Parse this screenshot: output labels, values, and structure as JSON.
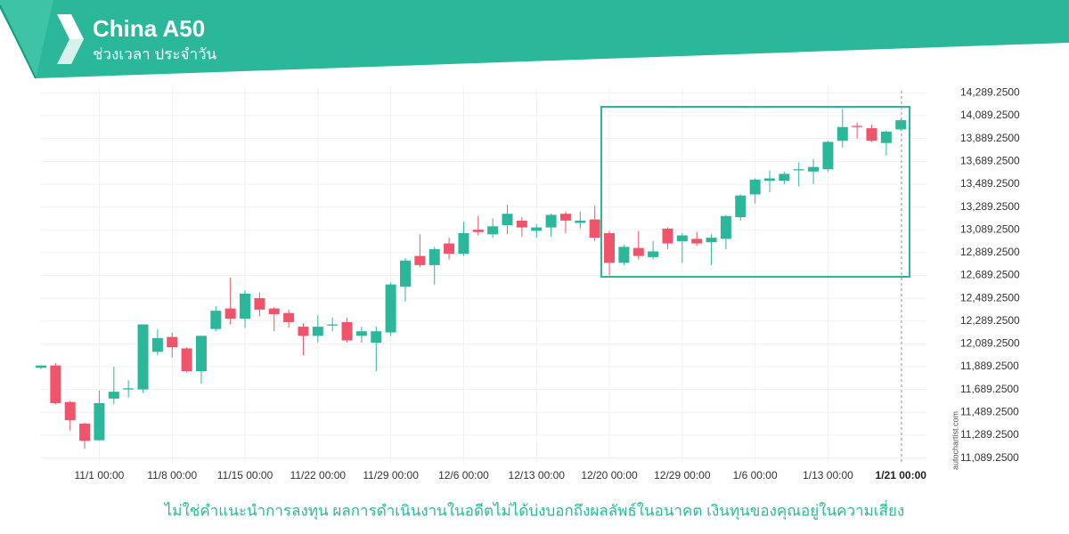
{
  "chart_data": {
    "type": "candlestick",
    "title": "China A50",
    "subtitle": "ช่วงเวลา ประจำวัน",
    "source": "autochartist.com",
    "note": "ไม่ใช่คำแนะนำการลงทุน ผลการดำเนินงานในอดีตไม่ได้บ่งบอกถึงผลลัพธ์ในอนาคต เงินทุนของคุณอยู่ในความเสี่ยง",
    "categories": [
      null,
      null,
      null,
      null,
      "11/1 00:00",
      null,
      null,
      null,
      null,
      "11/8 00:00",
      null,
      null,
      null,
      null,
      "11/15 00:00",
      null,
      null,
      null,
      null,
      "11/22 00:00",
      null,
      null,
      null,
      null,
      "11/29 00:00",
      null,
      null,
      null,
      null,
      "12/6 00:00",
      null,
      null,
      null,
      null,
      "12/13 00:00",
      null,
      null,
      null,
      null,
      "12/20 00:00",
      null,
      null,
      null,
      null,
      "12/29 00:00",
      null,
      null,
      null,
      null,
      "1/6 00:00",
      null,
      null,
      null,
      null,
      "1/13 00:00",
      null,
      null,
      null,
      null,
      "1/21 00:00"
    ],
    "open": [
      11880,
      11900,
      11580,
      11390,
      11245,
      11610,
      11690,
      11690,
      12020,
      12150,
      12050,
      11850,
      12220,
      12400,
      12310,
      12490,
      12400,
      12360,
      12240,
      12160,
      12250,
      12280,
      12160,
      12100,
      12190,
      12590,
      12860,
      12780,
      12970,
      12880,
      13090,
      13050,
      13130,
      13170,
      13080,
      13110,
      13230,
      13150,
      13180,
      13060,
      12800,
      12930,
      12850,
      13100,
      12990,
      13010,
      12980,
      13010,
      13200,
      13400,
      13520,
      13520,
      13610,
      13600,
      13620,
      13870,
      14000,
      13980,
      13850,
      13970
    ],
    "high": [
      11900,
      11920,
      11590,
      11400,
      11680,
      11890,
      11770,
      12260,
      12220,
      12190,
      12060,
      12160,
      12420,
      12670,
      12560,
      12540,
      12410,
      12390,
      12270,
      12340,
      12320,
      12320,
      12240,
      12240,
      12630,
      12840,
      13050,
      12940,
      13020,
      13160,
      13210,
      13190,
      13310,
      13200,
      13140,
      13230,
      13250,
      13250,
      13300,
      13080,
      12960,
      13080,
      12990,
      13110,
      13060,
      13070,
      13050,
      13220,
      13400,
      13540,
      13610,
      13600,
      13680,
      13710,
      13870,
      14150,
      14030,
      14010,
      13960,
      14060
    ],
    "low": [
      11870,
      11560,
      11330,
      11170,
      11240,
      11560,
      11620,
      11660,
      11990,
      11970,
      11840,
      11740,
      12200,
      12260,
      12230,
      12330,
      12200,
      12230,
      11990,
      12100,
      12200,
      12100,
      12100,
      11850,
      12160,
      12460,
      12760,
      12610,
      12830,
      12860,
      13040,
      13020,
      13050,
      13030,
      13020,
      13030,
      13060,
      13100,
      12990,
      12690,
      12780,
      12830,
      12830,
      12920,
      12800,
      12950,
      12780,
      12920,
      13170,
      13320,
      13420,
      13490,
      13470,
      13490,
      13600,
      13810,
      13890,
      13860,
      13740,
      13960
    ],
    "close": [
      11900,
      11570,
      11420,
      11240,
      11570,
      11670,
      11700,
      12260,
      12140,
      12060,
      11850,
      12160,
      12380,
      12310,
      12530,
      12390,
      12350,
      12280,
      12160,
      12240,
      12260,
      12120,
      12200,
      12200,
      12610,
      12820,
      12780,
      12920,
      12880,
      13060,
      13070,
      13120,
      13230,
      13110,
      13110,
      13220,
      13170,
      13170,
      13020,
      12800,
      12940,
      12860,
      12900,
      12970,
      13040,
      12970,
      13020,
      13210,
      13390,
      13530,
      13540,
      13580,
      13620,
      13640,
      13860,
      13990,
      13990,
      13870,
      13950,
      14050
    ],
    "up_color": "#2bb89a",
    "down_color": "#f0546a",
    "ylim": [
      11039.25,
      14339.25
    ],
    "yticks": [
      {
        "value": 11089.25,
        "label": "11,089.2500"
      },
      {
        "value": 11289.25,
        "label": "11,289.2500"
      },
      {
        "value": 11489.25,
        "label": "11,489.2500"
      },
      {
        "value": 11689.25,
        "label": "11,689.2500"
      },
      {
        "value": 11889.25,
        "label": "11,889.2500"
      },
      {
        "value": 12089.25,
        "label": "12,089.2500"
      },
      {
        "value": 12289.25,
        "label": "12,289.2500"
      },
      {
        "value": 12489.25,
        "label": "12,489.2500"
      },
      {
        "value": 12689.25,
        "label": "12,689.2500"
      },
      {
        "value": 12889.25,
        "label": "12,889.2500"
      },
      {
        "value": 13089.25,
        "label": "13,089.2500"
      },
      {
        "value": 13289.25,
        "label": "13,289.2500"
      },
      {
        "value": 13489.25,
        "label": "13,489.2500"
      },
      {
        "value": 13689.25,
        "label": "13,689.2500"
      },
      {
        "value": 13889.25,
        "label": "13,889.2500"
      },
      {
        "value": 14089.25,
        "label": "14,089.2500"
      },
      {
        "value": 14289.25,
        "label": "14,289.2500"
      }
    ],
    "grid": true
  }
}
